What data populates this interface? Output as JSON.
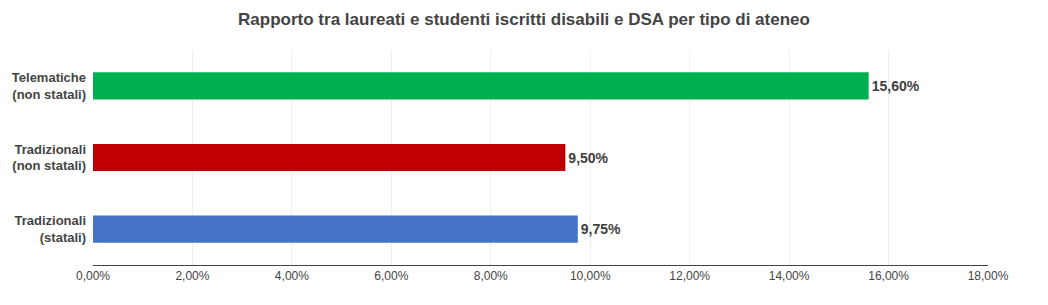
{
  "chart_data": {
    "type": "bar",
    "orientation": "horizontal",
    "title": "Rapporto tra laureati e studenti iscritti disabili e DSA per tipo di ateneo",
    "categories": [
      "Tradizionali\n(statali)",
      "Tradizionali\n(non statali)",
      "Telematiche\n(non statali)"
    ],
    "values": [
      9.75,
      9.5,
      15.6
    ],
    "value_labels": [
      "9,75%",
      "9,50%",
      "15,60%"
    ],
    "data_labels": true,
    "colors": [
      "#4472C4",
      "#C00000",
      "#00B050"
    ],
    "xlim": [
      0,
      18
    ],
    "xticks": [
      {
        "value": 0,
        "label": "0,00%"
      },
      {
        "value": 2,
        "label": "2,00%"
      },
      {
        "value": 4,
        "label": "4,00%"
      },
      {
        "value": 6,
        "label": "6,00%"
      },
      {
        "value": 8,
        "label": "8,00%"
      },
      {
        "value": 10,
        "label": "10,00%"
      },
      {
        "value": 12,
        "label": "12,00%"
      },
      {
        "value": 14,
        "label": "14,00%"
      },
      {
        "value": 16,
        "label": "16,00%"
      },
      {
        "value": 18,
        "label": "18,00%"
      }
    ],
    "grid": true
  }
}
